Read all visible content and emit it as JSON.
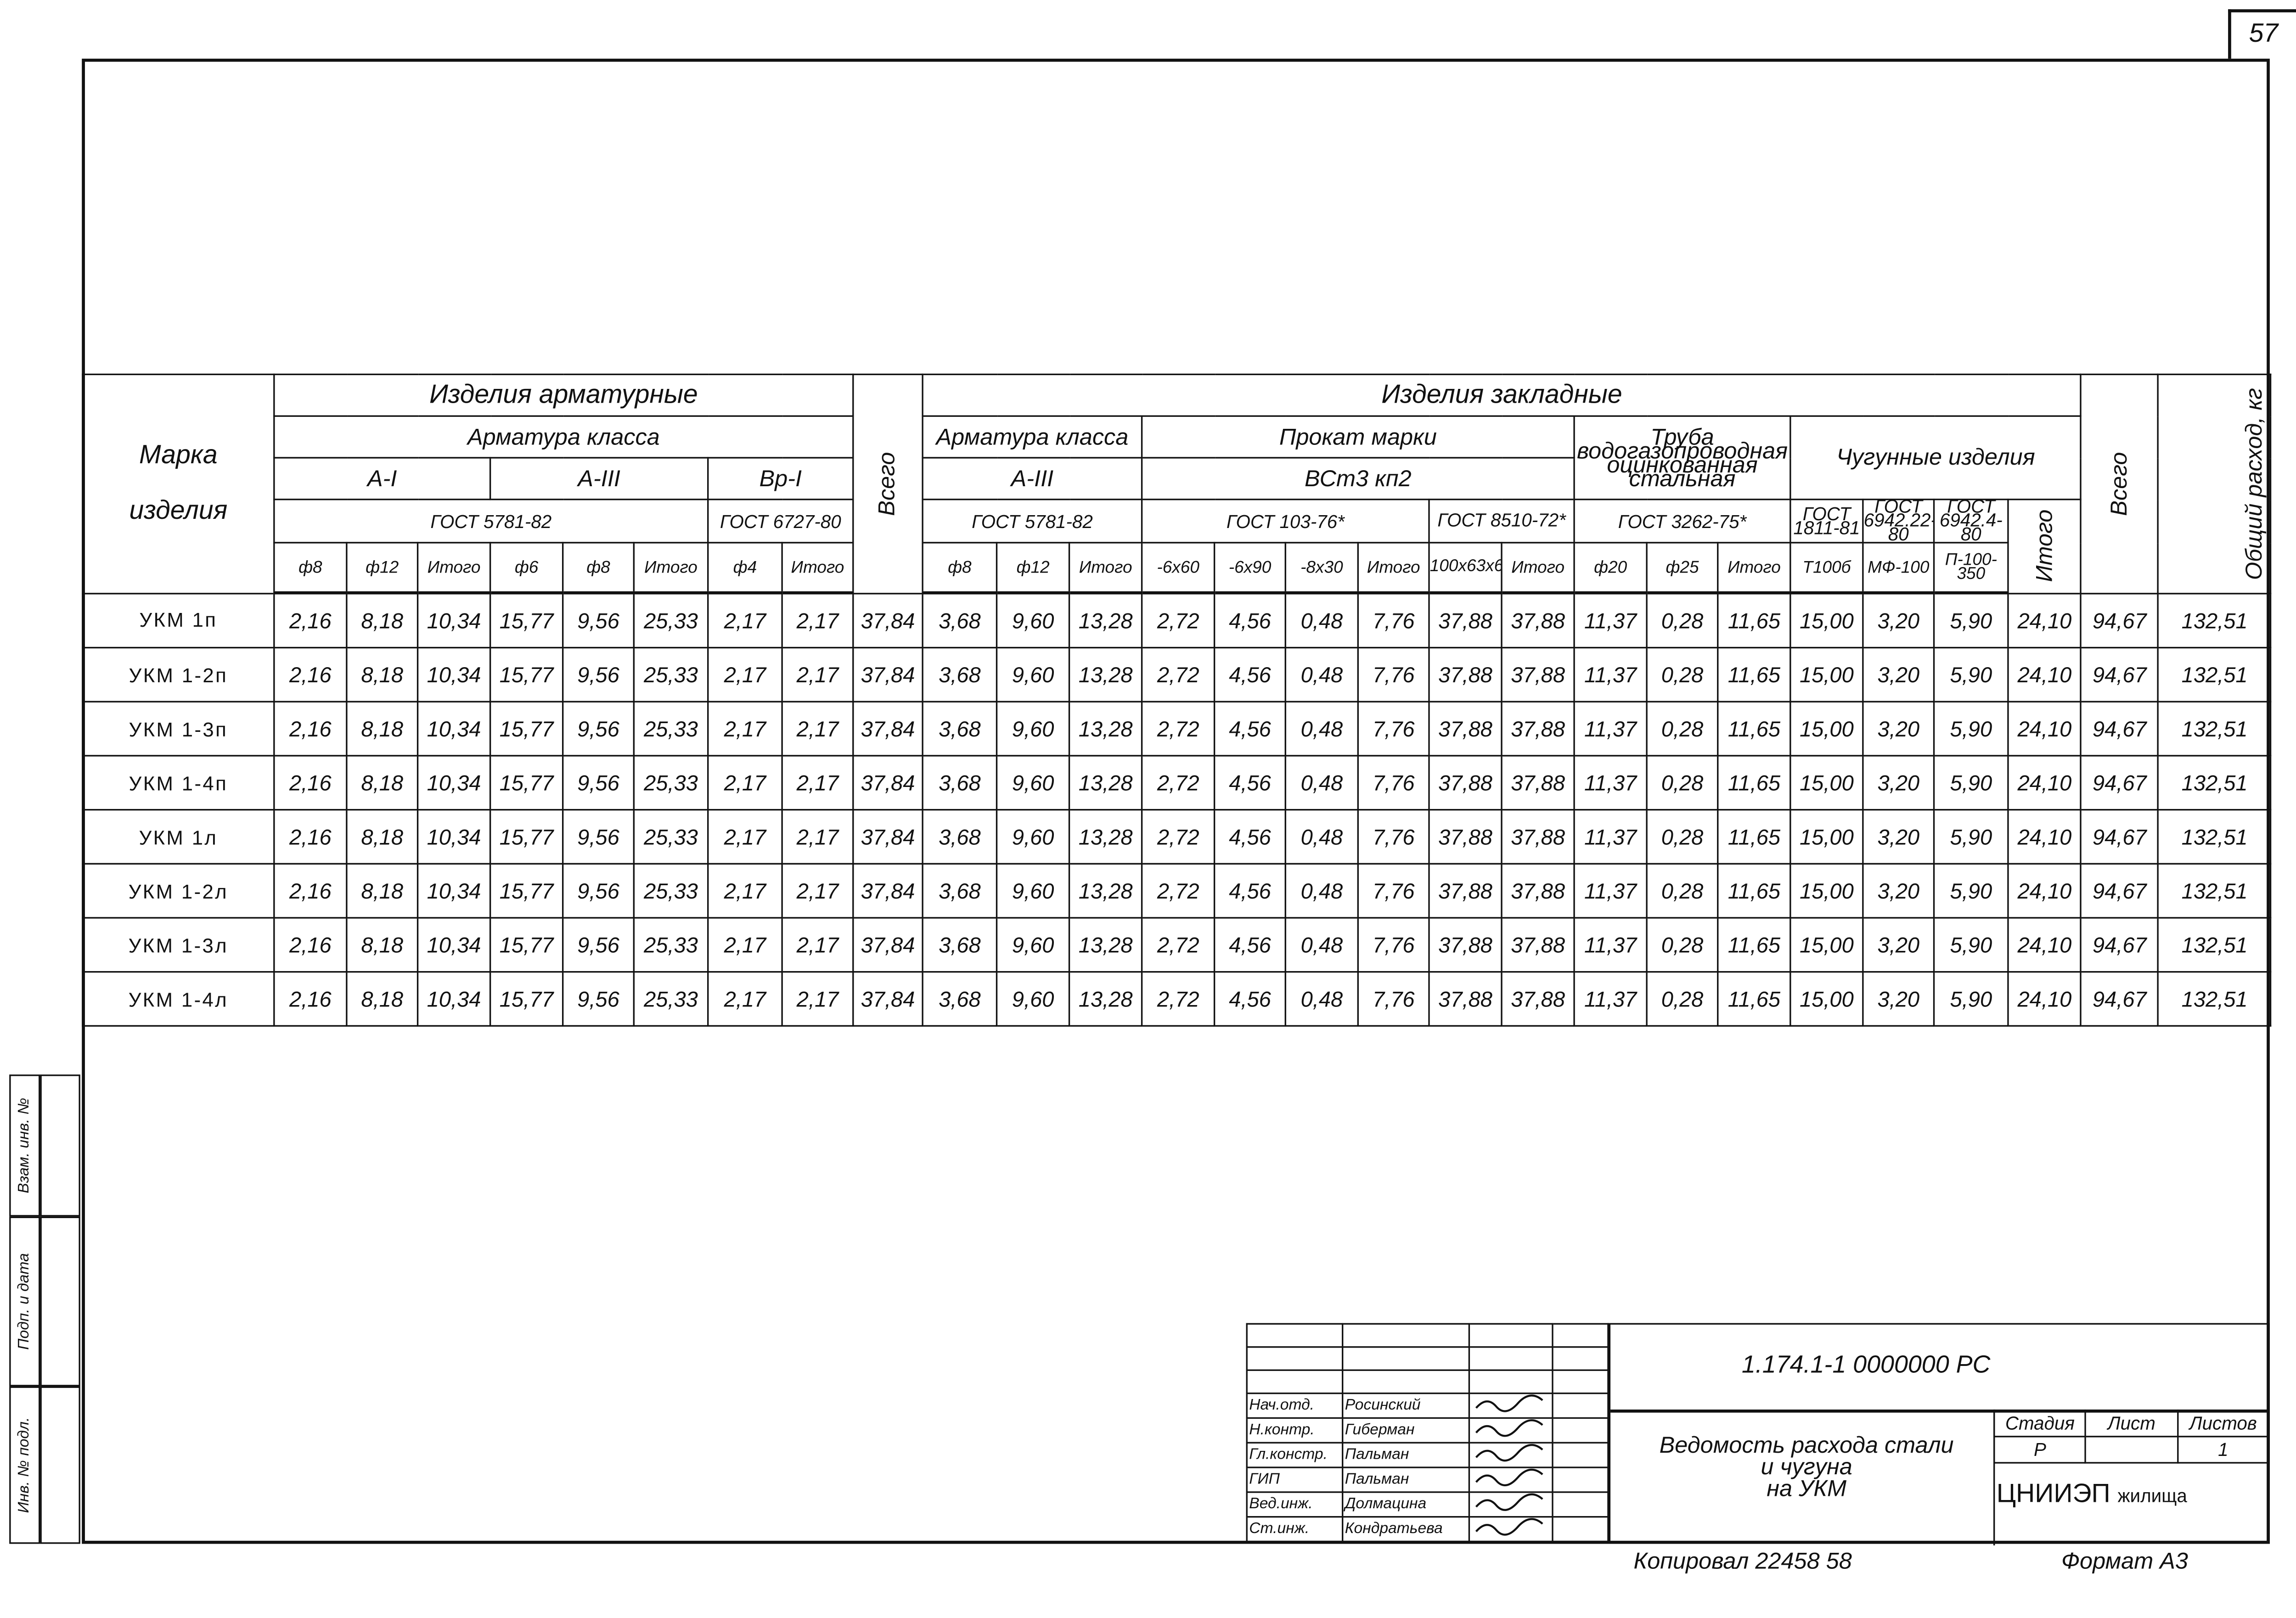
{
  "sheet_number": "57",
  "table": {
    "mark_header": [
      "Марка",
      "изделия"
    ],
    "rebar_group": "Изделия арматурные",
    "rebar_class": "Арматура класса",
    "rebar_subclasses": [
      "А-I",
      "А-III",
      "Вр-I"
    ],
    "rebar_gost": [
      "ГОСТ 5781-82",
      "ГОСТ 6727-80"
    ],
    "total1": "Всего",
    "embedded_group": "Изделия закладные",
    "emb_rebar_class": "Арматура класса",
    "emb_rebar_sub": "А-III",
    "emb_rebar_gost": "ГОСТ 5781-82",
    "rolled": "Прокат марки",
    "rolled_grade": "ВСт3 кп2",
    "rolled_gost1": "ГОСТ 103-76*",
    "rolled_gost2": "ГОСТ 8510-72*",
    "pipe": "Труба водогазопроводная оцинкованная стальная",
    "pipe_gost": "ГОСТ 3262-75*",
    "cast": "Чугунные изделия",
    "cast_gost": [
      "ГОСТ 1811-81",
      "ГОСТ 6942.22-80",
      "ГОСТ 6942.4-80"
    ],
    "cast_total": "Итого",
    "total2": "Всего",
    "overall": "Общий расход, кг",
    "columns": [
      "ф8",
      "ф12",
      "Итого",
      "ф6",
      "ф8",
      "Итого",
      "ф4",
      "Итого",
      "ф8",
      "ф12",
      "Итого",
      "-6x60",
      "-6x90",
      "-8x30",
      "Итого",
      "100x63x6",
      "Итого",
      "ф20",
      "ф25",
      "Итого",
      "Т100б",
      "МФ-100",
      "П-100-350"
    ],
    "rows": [
      {
        "mark": "УКМ 1п",
        "values": [
          "2,16",
          "8,18",
          "10,34",
          "15,77",
          "9,56",
          "25,33",
          "2,17",
          "2,17",
          "37,84",
          "3,68",
          "9,60",
          "13,28",
          "2,72",
          "4,56",
          "0,48",
          "7,76",
          "37,88",
          "37,88",
          "11,37",
          "0,28",
          "11,65",
          "15,00",
          "3,20",
          "5,90",
          "24,10",
          "94,67",
          "132,51"
        ]
      },
      {
        "mark": "УКМ 1-2п",
        "values": [
          "2,16",
          "8,18",
          "10,34",
          "15,77",
          "9,56",
          "25,33",
          "2,17",
          "2,17",
          "37,84",
          "3,68",
          "9,60",
          "13,28",
          "2,72",
          "4,56",
          "0,48",
          "7,76",
          "37,88",
          "37,88",
          "11,37",
          "0,28",
          "11,65",
          "15,00",
          "3,20",
          "5,90",
          "24,10",
          "94,67",
          "132,51"
        ]
      },
      {
        "mark": "УКМ 1-3п",
        "values": [
          "2,16",
          "8,18",
          "10,34",
          "15,77",
          "9,56",
          "25,33",
          "2,17",
          "2,17",
          "37,84",
          "3,68",
          "9,60",
          "13,28",
          "2,72",
          "4,56",
          "0,48",
          "7,76",
          "37,88",
          "37,88",
          "11,37",
          "0,28",
          "11,65",
          "15,00",
          "3,20",
          "5,90",
          "24,10",
          "94,67",
          "132,51"
        ]
      },
      {
        "mark": "УКМ 1-4п",
        "values": [
          "2,16",
          "8,18",
          "10,34",
          "15,77",
          "9,56",
          "25,33",
          "2,17",
          "2,17",
          "37,84",
          "3,68",
          "9,60",
          "13,28",
          "2,72",
          "4,56",
          "0,48",
          "7,76",
          "37,88",
          "37,88",
          "11,37",
          "0,28",
          "11,65",
          "15,00",
          "3,20",
          "5,90",
          "24,10",
          "94,67",
          "132,51"
        ]
      },
      {
        "mark": "УКМ 1л",
        "values": [
          "2,16",
          "8,18",
          "10,34",
          "15,77",
          "9,56",
          "25,33",
          "2,17",
          "2,17",
          "37,84",
          "3,68",
          "9,60",
          "13,28",
          "2,72",
          "4,56",
          "0,48",
          "7,76",
          "37,88",
          "37,88",
          "11,37",
          "0,28",
          "11,65",
          "15,00",
          "3,20",
          "5,90",
          "24,10",
          "94,67",
          "132,51"
        ]
      },
      {
        "mark": "УКМ 1-2л",
        "values": [
          "2,16",
          "8,18",
          "10,34",
          "15,77",
          "9,56",
          "25,33",
          "2,17",
          "2,17",
          "37,84",
          "3,68",
          "9,60",
          "13,28",
          "2,72",
          "4,56",
          "0,48",
          "7,76",
          "37,88",
          "37,88",
          "11,37",
          "0,28",
          "11,65",
          "15,00",
          "3,20",
          "5,90",
          "24,10",
          "94,67",
          "132,51"
        ]
      },
      {
        "mark": "УКМ 1-3л",
        "values": [
          "2,16",
          "8,18",
          "10,34",
          "15,77",
          "9,56",
          "25,33",
          "2,17",
          "2,17",
          "37,84",
          "3,68",
          "9,60",
          "13,28",
          "2,72",
          "4,56",
          "0,48",
          "7,76",
          "37,88",
          "37,88",
          "11,37",
          "0,28",
          "11,65",
          "15,00",
          "3,20",
          "5,90",
          "24,10",
          "94,67",
          "132,51"
        ]
      },
      {
        "mark": "УКМ 1-4л",
        "values": [
          "2,16",
          "8,18",
          "10,34",
          "15,77",
          "9,56",
          "25,33",
          "2,17",
          "2,17",
          "37,84",
          "3,68",
          "9,60",
          "13,28",
          "2,72",
          "4,56",
          "0,48",
          "7,76",
          "37,88",
          "37,88",
          "11,37",
          "0,28",
          "11,65",
          "15,00",
          "3,20",
          "5,90",
          "24,10",
          "94,67",
          "132,51"
        ]
      }
    ]
  },
  "title_block": {
    "signatures": [
      {
        "role": "Нач.отд.",
        "name": "Росинский"
      },
      {
        "role": "Н.контр.",
        "name": "Гиберман"
      },
      {
        "role": "Гл.констр.",
        "name": "Пальман"
      },
      {
        "role": "ГИП",
        "name": "Пальман"
      },
      {
        "role": "Вед.инж.",
        "name": "Долмацина"
      },
      {
        "role": "Ст.инж.",
        "name": "Кондратьева"
      }
    ],
    "code": "1.174.1-1   0000000 РС",
    "title": [
      "Ведомость расхода стали",
      "и чугуна",
      "на УКМ"
    ],
    "stage_label": "Стадия",
    "sheet_label": "Лист",
    "sheets_label": "Листов",
    "stage": "Р",
    "sheet": "",
    "sheets": "1",
    "org": "ЦНИИЭП",
    "org_suffix": "жилища"
  },
  "footer": {
    "copied": "Копировал  22458   58",
    "format": "Формат А3"
  },
  "margin_stamp": [
    "Инв. № подл.",
    "Подп. и дата",
    "Взам. инв. №"
  ]
}
